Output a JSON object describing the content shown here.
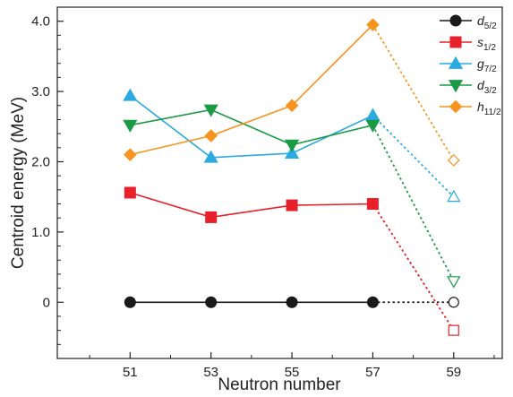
{
  "chart_data": {
    "type": "line",
    "xlabel": "Neutron number",
    "ylabel": "Centroid energy (MeV)",
    "xlim": [
      49.2,
      60.2
    ],
    "ylim": [
      -0.8,
      4.2
    ],
    "x_ticks": [
      51,
      53,
      55,
      57,
      59
    ],
    "y_ticks": [
      0,
      1.0,
      2.0,
      3.0,
      4.0
    ],
    "y_tick_labels": [
      "0",
      "1.0",
      "2.0",
      "3.0",
      "4.0"
    ],
    "grid": false,
    "legend_position": "top-right",
    "series": [
      {
        "name": "d5/2",
        "label_main": "d",
        "label_sub": "5/2",
        "color": "#1a1a1a",
        "marker": "circle",
        "x": [
          51,
          53,
          55,
          57
        ],
        "y": [
          0,
          0,
          0,
          0
        ],
        "extrapolated": {
          "x": [
            57,
            59
          ],
          "y": [
            0,
            0
          ]
        }
      },
      {
        "name": "s1/2",
        "label_main": "s",
        "label_sub": "1/2",
        "color": "#e8202a",
        "marker": "square",
        "x": [
          51,
          53,
          55,
          57
        ],
        "y": [
          1.56,
          1.21,
          1.38,
          1.4
        ],
        "extrapolated": {
          "x": [
            57,
            59
          ],
          "y": [
            1.4,
            -0.4
          ]
        }
      },
      {
        "name": "g7/2",
        "label_main": "g",
        "label_sub": "7/2",
        "color": "#29aae1",
        "marker": "triangle-up",
        "x": [
          51,
          53,
          55,
          57
        ],
        "y": [
          2.94,
          2.06,
          2.12,
          2.66
        ],
        "extrapolated": {
          "x": [
            57,
            59
          ],
          "y": [
            2.66,
            1.5
          ]
        }
      },
      {
        "name": "d3/2",
        "label_main": "d",
        "label_sub": "3/2",
        "color": "#1a9a45",
        "marker": "triangle-down",
        "x": [
          51,
          53,
          55,
          57
        ],
        "y": [
          2.52,
          2.74,
          2.24,
          2.52
        ],
        "extrapolated": {
          "x": [
            57,
            59
          ],
          "y": [
            2.52,
            0.3
          ]
        }
      },
      {
        "name": "h11/2",
        "label_main": "h",
        "label_sub": "11/2",
        "color": "#f7931e",
        "marker": "diamond",
        "x": [
          51,
          53,
          55,
          57
        ],
        "y": [
          2.1,
          2.37,
          2.8,
          3.95
        ],
        "extrapolated": {
          "x": [
            57,
            59
          ],
          "y": [
            3.95,
            2.02
          ]
        }
      }
    ]
  }
}
